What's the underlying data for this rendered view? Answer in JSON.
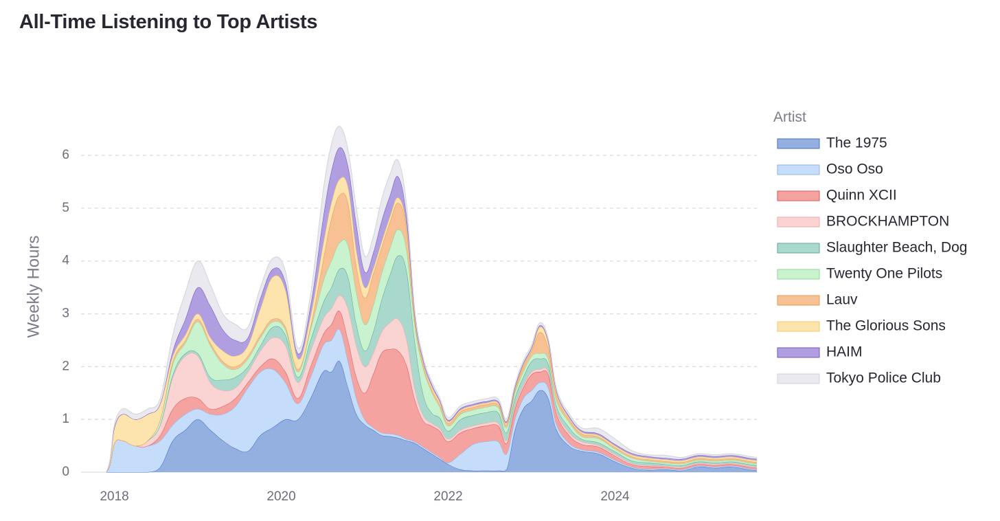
{
  "chart_data": {
    "type": "area",
    "stacked": true,
    "smooth": true,
    "title": "All-Time Listening to Top Artists",
    "xlabel": "",
    "ylabel": "Weekly Hours",
    "ylim": [
      0,
      6.6
    ],
    "yticks": [
      0,
      1,
      2,
      3,
      4,
      5,
      6
    ],
    "xlim": [
      2017.6,
      2025.7
    ],
    "xticks": [
      2018,
      2020,
      2022,
      2024
    ],
    "xtick_labels": [
      "2018",
      "2020",
      "2022",
      "2024"
    ],
    "grid": "horizontal-dashed",
    "legend": {
      "title": "Artist",
      "position": "right"
    },
    "x": [
      2017.6,
      2017.9,
      2018.0,
      2018.1,
      2018.25,
      2018.4,
      2018.55,
      2018.7,
      2018.85,
      2019.0,
      2019.15,
      2019.3,
      2019.45,
      2019.6,
      2019.75,
      2019.9,
      2020.05,
      2020.2,
      2020.35,
      2020.5,
      2020.6,
      2020.7,
      2020.8,
      2020.9,
      2021.0,
      2021.1,
      2021.2,
      2021.3,
      2021.4,
      2021.5,
      2021.6,
      2021.7,
      2021.8,
      2021.9,
      2022.0,
      2022.15,
      2022.3,
      2022.45,
      2022.6,
      2022.7,
      2022.8,
      2022.9,
      2023.0,
      2023.1,
      2023.2,
      2023.3,
      2023.45,
      2023.6,
      2023.8,
      2024.0,
      2024.2,
      2024.4,
      2024.6,
      2024.8,
      2025.0,
      2025.2,
      2025.4,
      2025.6,
      2025.7
    ],
    "series": [
      {
        "name": "The 1975",
        "color": "#93b0e1",
        "stroke": "#4a6fc4",
        "values": [
          0,
          0,
          0,
          0,
          0,
          0,
          0.1,
          0.6,
          0.8,
          1.0,
          0.8,
          0.6,
          0.45,
          0.4,
          0.7,
          0.85,
          1.0,
          1.0,
          1.4,
          1.9,
          1.9,
          2.1,
          1.6,
          1.1,
          0.9,
          0.8,
          0.7,
          0.68,
          0.65,
          0.6,
          0.55,
          0.45,
          0.35,
          0.25,
          0.15,
          0.05,
          0.03,
          0.03,
          0.03,
          0.05,
          0.8,
          1.2,
          1.35,
          1.55,
          1.4,
          0.8,
          0.5,
          0.4,
          0.35,
          0.2,
          0.08,
          0.04,
          0.05,
          0.03,
          0.1,
          0.08,
          0.1,
          0.05,
          0.03
        ]
      },
      {
        "name": "Oso Oso",
        "color": "#c5ddfa",
        "stroke": "#8fb3e6",
        "values": [
          0,
          0,
          0.55,
          0.6,
          0.5,
          0.5,
          0.5,
          0.3,
          0.3,
          0.2,
          0.3,
          0.5,
          0.8,
          1.2,
          1.2,
          1.1,
          0.7,
          0.3,
          0.4,
          0.5,
          0.6,
          0.6,
          0.5,
          0.3,
          0.1,
          0.05,
          0.05,
          0.05,
          0.05,
          0.03,
          0.03,
          0.03,
          0.03,
          0.03,
          0.03,
          0.3,
          0.5,
          0.55,
          0.55,
          0.3,
          0.2,
          0.2,
          0.2,
          0.15,
          0.2,
          0.1,
          0.05,
          0.03,
          0.03,
          0.03,
          0.02,
          0.02,
          0.02,
          0.02,
          0.02,
          0.02,
          0.02,
          0.02,
          0.02
        ]
      },
      {
        "name": "Quinn XCII",
        "color": "#f5a3a1",
        "stroke": "#e0555a",
        "values": [
          0,
          0,
          0,
          0,
          0,
          0,
          0.1,
          0.3,
          0.3,
          0.2,
          0.1,
          0.15,
          0.15,
          0.1,
          0.1,
          0.2,
          0.2,
          0.1,
          0.2,
          0.2,
          0.3,
          0.35,
          0.4,
          0.4,
          0.5,
          1.0,
          1.5,
          1.6,
          1.6,
          1.4,
          0.8,
          0.5,
          0.5,
          0.5,
          0.4,
          0.4,
          0.3,
          0.3,
          0.3,
          0.2,
          0.2,
          0.2,
          0.3,
          0.2,
          0.25,
          0.2,
          0.15,
          0.1,
          0.1,
          0.08,
          0.05,
          0.05,
          0.03,
          0.03,
          0.03,
          0.03,
          0.03,
          0.03,
          0.03
        ]
      },
      {
        "name": "BROCKHAMPTON",
        "color": "#fad3d3",
        "stroke": "#f0a8a8",
        "values": [
          0,
          0,
          0,
          0,
          0,
          0.1,
          0.2,
          0.6,
          0.8,
          0.8,
          0.5,
          0.3,
          0.2,
          0.2,
          0.3,
          0.4,
          0.5,
          0.3,
          0.3,
          0.3,
          0.3,
          0.3,
          0.6,
          0.6,
          0.5,
          0.4,
          0.4,
          0.5,
          0.6,
          0.5,
          0.2,
          0.1,
          0.05,
          0.05,
          0.05,
          0.05,
          0.05,
          0.05,
          0.05,
          0.05,
          0.05,
          0.05,
          0.05,
          0.05,
          0.05,
          0.05,
          0.05,
          0.05,
          0.03,
          0.03,
          0.02,
          0.02,
          0.02,
          0.02,
          0.02,
          0.02,
          0.02,
          0.02,
          0.02
        ]
      },
      {
        "name": "Slaughter Beach, Dog",
        "color": "#a9d9cd",
        "stroke": "#5fa895",
        "values": [
          0,
          0,
          0,
          0,
          0,
          0,
          0,
          0.05,
          0.05,
          0.05,
          0.1,
          0.2,
          0.2,
          0.1,
          0.1,
          0.2,
          0.2,
          0.1,
          0.2,
          0.3,
          0.4,
          0.5,
          0.6,
          0.4,
          0.3,
          0.4,
          0.6,
          0.9,
          1.2,
          1.3,
          0.9,
          0.4,
          0.2,
          0.2,
          0.15,
          0.2,
          0.2,
          0.2,
          0.2,
          0.15,
          0.15,
          0.15,
          0.2,
          0.2,
          0.15,
          0.1,
          0.1,
          0.05,
          0.05,
          0.05,
          0.05,
          0.05,
          0.03,
          0.03,
          0.03,
          0.03,
          0.03,
          0.03,
          0.03
        ]
      },
      {
        "name": "Twenty One Pilots",
        "color": "#c9f2cf",
        "stroke": "#8fd79a",
        "values": [
          0,
          0,
          0,
          0,
          0,
          0,
          0.1,
          0.2,
          0.2,
          0.6,
          0.6,
          0.3,
          0.15,
          0.15,
          0.15,
          0.1,
          0.1,
          0.1,
          0.2,
          0.4,
          0.5,
          0.5,
          0.6,
          0.6,
          0.5,
          0.5,
          0.5,
          0.5,
          0.5,
          0.4,
          0.3,
          0.5,
          0.4,
          0.2,
          0.1,
          0.1,
          0.1,
          0.1,
          0.1,
          0.1,
          0.1,
          0.1,
          0.1,
          0.1,
          0.1,
          0.1,
          0.1,
          0.05,
          0.08,
          0.05,
          0.05,
          0.03,
          0.03,
          0.03,
          0.03,
          0.03,
          0.03,
          0.03,
          0.03
        ]
      },
      {
        "name": "Lauv",
        "color": "#f7c193",
        "stroke": "#e89a55",
        "values": [
          0,
          0,
          0,
          0,
          0,
          0,
          0,
          0.05,
          0.05,
          0.05,
          0.05,
          0.05,
          0.05,
          0.05,
          0.05,
          0.05,
          0.05,
          0.05,
          0.05,
          0.4,
          0.8,
          0.9,
          0.8,
          0.5,
          0.5,
          0.6,
          0.5,
          0.5,
          0.5,
          0.4,
          0.1,
          0.05,
          0.05,
          0.05,
          0.05,
          0.05,
          0.05,
          0.05,
          0.05,
          0.05,
          0.05,
          0.1,
          0.1,
          0.4,
          0.2,
          0.1,
          0.05,
          0.05,
          0.03,
          0.03,
          0.03,
          0.03,
          0.03,
          0.03,
          0.03,
          0.03,
          0.03,
          0.03,
          0.03
        ]
      },
      {
        "name": "The Glorious Sons",
        "color": "#fde3ac",
        "stroke": "#f3c870",
        "values": [
          0,
          0,
          0.3,
          0.5,
          0.5,
          0.5,
          0.3,
          0.1,
          0.1,
          0.1,
          0.1,
          0.2,
          0.2,
          0.2,
          0.5,
          0.8,
          0.7,
          0.2,
          0.2,
          0.3,
          0.3,
          0.3,
          0.3,
          0.3,
          0.2,
          0.1,
          0.1,
          0.1,
          0.1,
          0.05,
          0.05,
          0.05,
          0.05,
          0.05,
          0.03,
          0.03,
          0.03,
          0.03,
          0.03,
          0.03,
          0.03,
          0.03,
          0.03,
          0.1,
          0.1,
          0.05,
          0.03,
          0.03,
          0.03,
          0.03,
          0.03,
          0.03,
          0.03,
          0.03,
          0.03,
          0.03,
          0.03,
          0.03,
          0.03
        ]
      },
      {
        "name": "HAIM",
        "color": "#b09ee0",
        "stroke": "#6e56c9",
        "values": [
          0,
          0,
          0,
          0,
          0,
          0,
          0,
          0.1,
          0.3,
          0.5,
          0.6,
          0.4,
          0.3,
          0.15,
          0.2,
          0.15,
          0.15,
          0.1,
          0.2,
          0.5,
          0.6,
          0.6,
          0.4,
          0.5,
          0.3,
          0.3,
          0.4,
          0.4,
          0.4,
          0.2,
          0.05,
          0.05,
          0.05,
          0.03,
          0.03,
          0.03,
          0.03,
          0.03,
          0.03,
          0.03,
          0.03,
          0.03,
          0.03,
          0.03,
          0.03,
          0.03,
          0.03,
          0.03,
          0.03,
          0.03,
          0.03,
          0.03,
          0.03,
          0.03,
          0.03,
          0.03,
          0.03,
          0.03,
          0.03
        ]
      },
      {
        "name": "Tokyo Police Club",
        "color": "#e9e9ef",
        "stroke": "#d4d5de",
        "values": [
          0,
          0,
          0.05,
          0.1,
          0.1,
          0.1,
          0.1,
          0.3,
          0.5,
          0.5,
          0.4,
          0.3,
          0.3,
          0.2,
          0.2,
          0.2,
          0.2,
          0.1,
          0.2,
          0.5,
          0.5,
          0.4,
          0.3,
          0.3,
          0.3,
          0.3,
          0.4,
          0.4,
          0.3,
          0.2,
          0.1,
          0.05,
          0.05,
          0.05,
          0.05,
          0.05,
          0.05,
          0.05,
          0.05,
          0.05,
          0.05,
          0.05,
          0.05,
          0.05,
          0.05,
          0.05,
          0.05,
          0.05,
          0.1,
          0.1,
          0.05,
          0.03,
          0.05,
          0.03,
          0.03,
          0.03,
          0.03,
          0.03,
          0.03
        ]
      }
    ]
  }
}
